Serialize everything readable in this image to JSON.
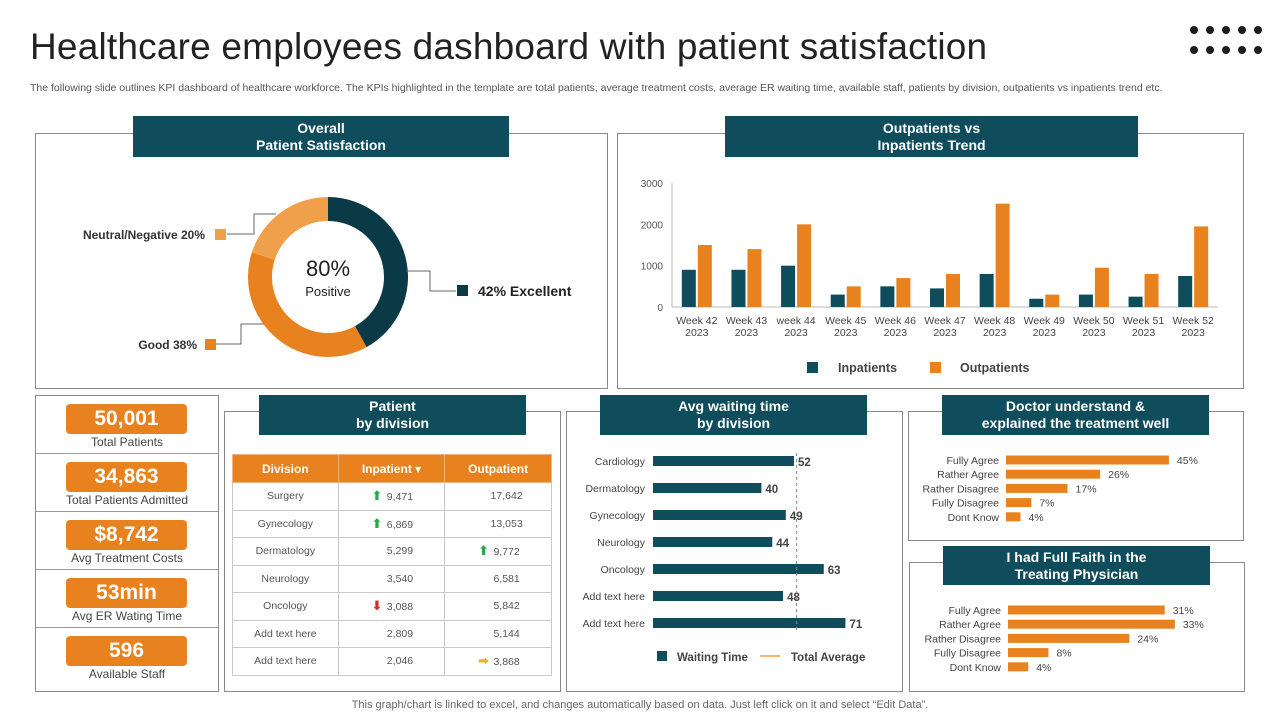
{
  "title": "Healthcare employees dashboard with patient satisfaction",
  "subtitle": "The following slide outlines KPI dashboard of healthcare workforce. The KPIs highlighted in the template are total patients, average treatment costs, average ER waiting time, available staff, patients by division, outpatients vs inpatients trend etc.",
  "footer": "This graph/chart is linked to excel,  and changes automatically based on data. Just left click on it and select “Edit Data”.",
  "colors": {
    "teal": "#0f4c5c",
    "dark_teal": "#0b3a47",
    "orange": "#e8821e",
    "light_orange": "#f0a04b"
  },
  "satisfaction": {
    "header_line1": "Overall",
    "header_line2": "Patient Satisfaction",
    "center_value": "80%",
    "center_label": "Positive",
    "labels": {
      "excellent": "42% Excellent",
      "good": "Good 38%",
      "neutral": "Neutral/Negative 20%"
    }
  },
  "kpis": [
    {
      "value": "50,001",
      "label": "Total Patients"
    },
    {
      "value": "34,863",
      "label": "Total Patients Admitted"
    },
    {
      "value": "$8,742",
      "label": "Avg Treatment Costs"
    },
    {
      "value": "53min",
      "label": "Avg ER Wating Time"
    },
    {
      "value": "596",
      "label": "Available Staff"
    }
  ],
  "division_table": {
    "header_line1": "Patient",
    "header_line2": "by division",
    "columns": [
      "Division",
      "Inpatient ▾",
      "Outpatient"
    ],
    "rows": [
      {
        "division": "Surgery",
        "inpatient": "9,471",
        "outpatient": "17,642",
        "in_icon": "up-arrow-icon",
        "out_icon": ""
      },
      {
        "division": "Gynecology",
        "inpatient": "6,869",
        "outpatient": "13,053",
        "in_icon": "up-arrow-icon",
        "out_icon": ""
      },
      {
        "division": "Dermatology",
        "inpatient": "5,299",
        "outpatient": "9,772",
        "in_icon": "",
        "out_icon": "up-arrow-icon"
      },
      {
        "division": "Neurology",
        "inpatient": "3,540",
        "outpatient": "6,581",
        "in_icon": "",
        "out_icon": ""
      },
      {
        "division": "Oncology",
        "inpatient": "3,088",
        "outpatient": "5,842",
        "in_icon": "down-arrow-icon",
        "out_icon": ""
      },
      {
        "division": "Add text here",
        "inpatient": "2,809",
        "outpatient": "5,144",
        "in_icon": "",
        "out_icon": ""
      },
      {
        "division": "Add text here",
        "inpatient": "2,046",
        "outpatient": "3,868",
        "in_icon": "",
        "out_icon": "right-arrow-icon"
      }
    ]
  },
  "headers": {
    "trend_line1": "Outpatients vs",
    "trend_line2": "Inpatients Trend",
    "wait_line1": "Avg waiting time",
    "wait_line2": "by division",
    "doctor_line1": "Doctor understand &",
    "doctor_line2": "explained the treatment well",
    "faith_line1": "I had Full Faith in the",
    "faith_line2": "Treating Physician"
  },
  "chart_data": [
    {
      "type": "pie",
      "title": "Overall Patient Satisfaction",
      "categories": [
        "Excellent",
        "Good",
        "Neutral/Negative"
      ],
      "values": [
        42,
        38,
        20
      ]
    },
    {
      "type": "bar",
      "title": "Outpatients vs Inpatients Trend",
      "categories": [
        "Week 42 2023",
        "Week 43 2023",
        "week 44 2023",
        "Week 45 2023",
        "Week 46 2023",
        "Week 47 2023",
        "Week 48 2023",
        "Week 49 2023",
        "Week 50 2023",
        "Week 51 2023",
        "Week 52 2023"
      ],
      "series": [
        {
          "name": "Inpatients",
          "values": [
            900,
            900,
            1000,
            300,
            500,
            450,
            800,
            200,
            300,
            250,
            750
          ]
        },
        {
          "name": "Outpatients",
          "values": [
            1500,
            1400,
            2000,
            500,
            700,
            800,
            2500,
            300,
            950,
            800,
            1950
          ]
        }
      ],
      "yticks": [
        "0",
        "1000",
        "2000",
        "3000"
      ],
      "ylim": [
        0,
        3000
      ],
      "legend": "bottom"
    },
    {
      "type": "bar",
      "orientation": "horizontal",
      "title": "Avg waiting time by division",
      "categories": [
        "Cardiology",
        "Dermatology",
        "Gynecology",
        "Neurology",
        "Oncology",
        "Add text here",
        "Add text here"
      ],
      "series": [
        {
          "name": "Waiting Time",
          "values": [
            52,
            40,
            49,
            44,
            63,
            48,
            71
          ]
        }
      ],
      "average": {
        "name": "Total Average",
        "value": 53
      },
      "xlim": [
        0,
        76
      ],
      "legend": "bottom"
    },
    {
      "type": "bar",
      "orientation": "horizontal",
      "title": "Doctor understand & explained the treatment well",
      "categories": [
        "Fully Agree",
        "Rather Agree",
        "Rather Disagree",
        "Fully Disagree",
        "Dont Know"
      ],
      "values": [
        45,
        26,
        17,
        7,
        4
      ],
      "labels": [
        "45%",
        "26%",
        "17%",
        "7%",
        "4%"
      ],
      "xlim": [
        0,
        50
      ]
    },
    {
      "type": "bar",
      "orientation": "horizontal",
      "title": "I had Full Faith in the Treating Physician",
      "categories": [
        "Fully Agree",
        "Rather Agree",
        "Rather Disagree",
        "Fully Disagree",
        "Dont Know"
      ],
      "values": [
        31,
        33,
        24,
        8,
        4
      ],
      "labels": [
        "31%",
        "33%",
        "24%",
        "8%",
        "4%"
      ],
      "xlim": [
        0,
        36
      ]
    }
  ]
}
